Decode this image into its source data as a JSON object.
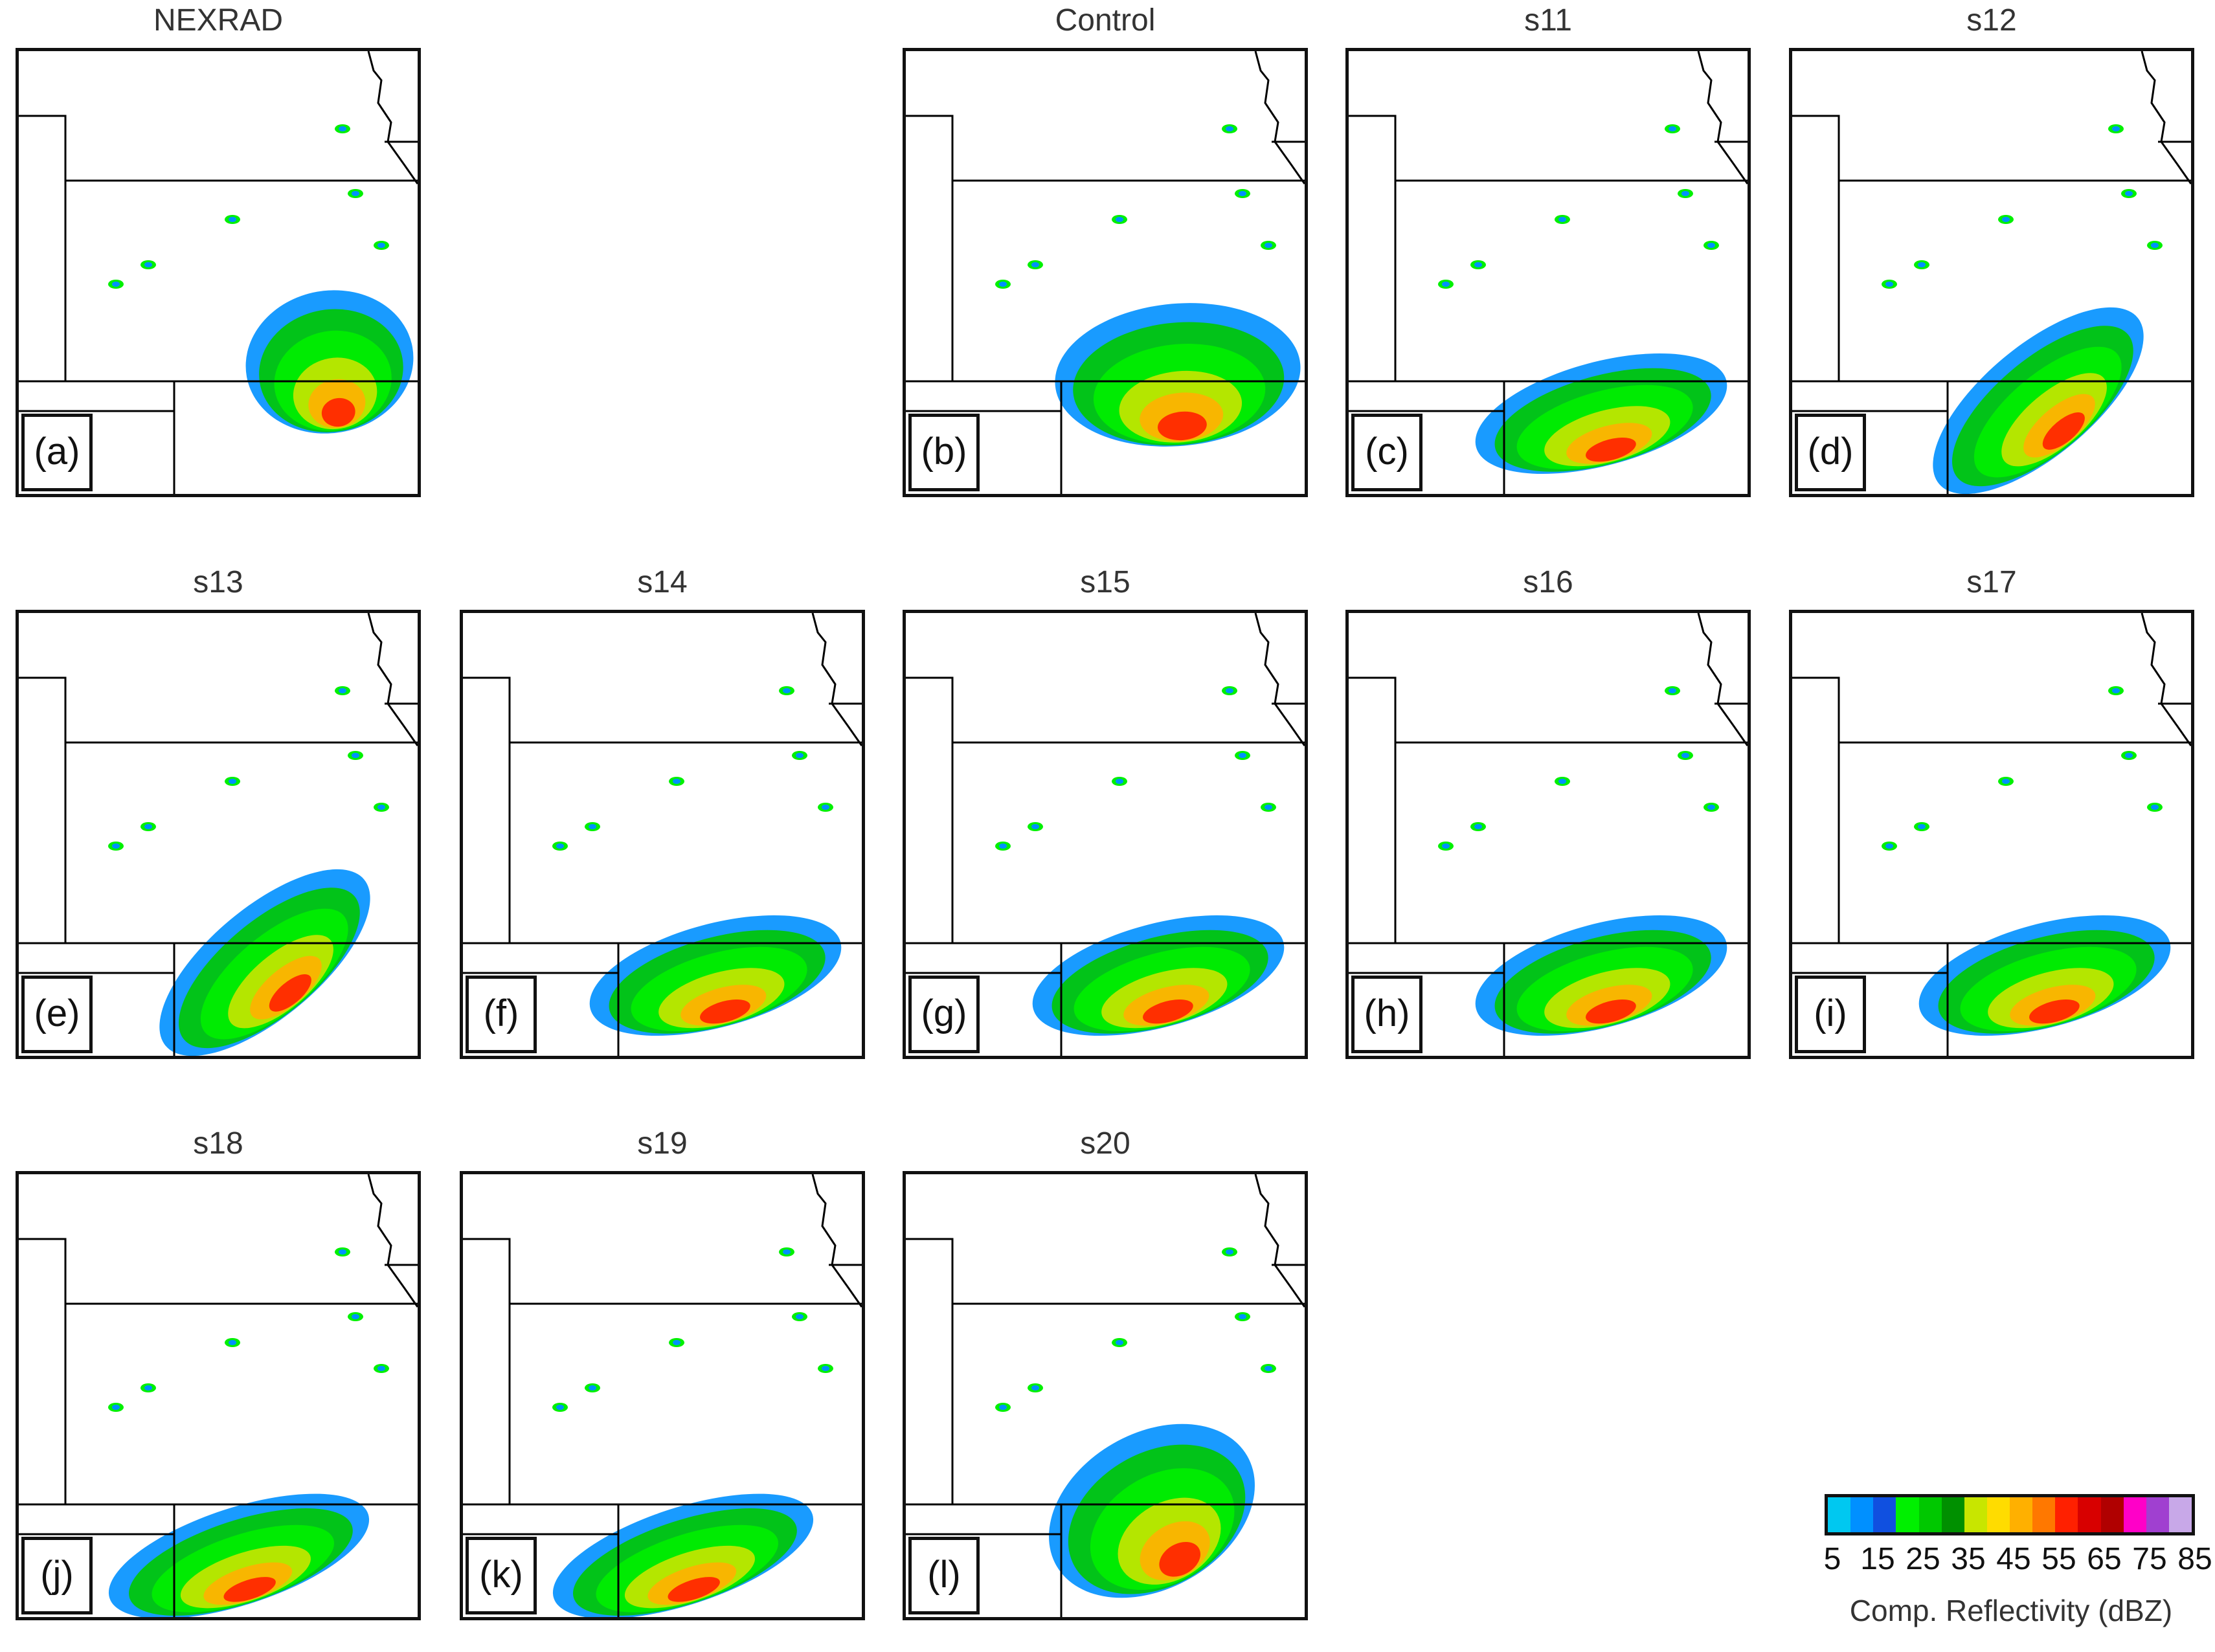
{
  "panels": [
    {
      "title": "NEXRAD",
      "label": "(a)",
      "storm": "radar"
    },
    {
      "title": "Control",
      "label": "(b)",
      "storm": "control"
    },
    {
      "title": "s11",
      "label": "(c)",
      "storm": "arc"
    },
    {
      "title": "s12",
      "label": "(d)",
      "storm": "diag"
    },
    {
      "title": "s13",
      "label": "(e)",
      "storm": "diag"
    },
    {
      "title": "s14",
      "label": "(f)",
      "storm": "arc"
    },
    {
      "title": "s15",
      "label": "(g)",
      "storm": "arc"
    },
    {
      "title": "s16",
      "label": "(h)",
      "storm": "arc"
    },
    {
      "title": "s17",
      "label": "(i)",
      "storm": "arc"
    },
    {
      "title": "s18",
      "label": "(j)",
      "storm": "low"
    },
    {
      "title": "s19",
      "label": "(k)",
      "storm": "low"
    },
    {
      "title": "s20",
      "label": "(l)",
      "storm": "tall"
    }
  ],
  "colorbar": {
    "label": "Comp. Reflectivity (dBZ)",
    "tick_labels": [
      "5",
      "15",
      "25",
      "35",
      "45",
      "55",
      "65",
      "75",
      "85"
    ],
    "min": 5,
    "max": 85,
    "step": 5,
    "colors": [
      "#00c8f0",
      "#0090ff",
      "#1050e0",
      "#00f000",
      "#00c800",
      "#009000",
      "#c8e600",
      "#ffdc00",
      "#ffb000",
      "#ff7800",
      "#ff2000",
      "#d80000",
      "#b00000",
      "#ff00c8",
      "#a040d0",
      "#c8a8e8"
    ]
  },
  "colors": {
    "frame": "#111111",
    "title_text": "#333333",
    "map_lines": "#000000"
  }
}
